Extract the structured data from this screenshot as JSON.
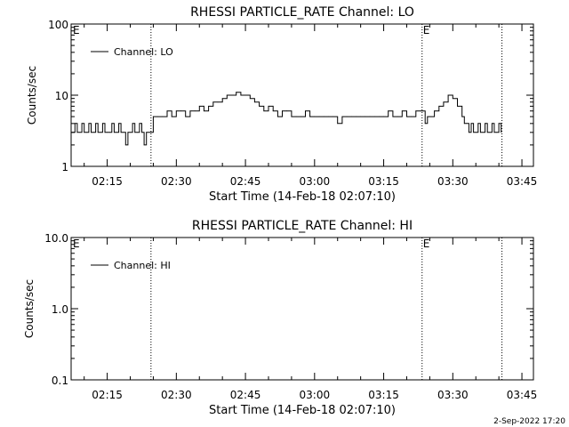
{
  "footer": {
    "date_stamp": "2-Sep-2022 17:20"
  },
  "chart_data": [
    {
      "type": "line",
      "title": "RHESSI PARTICLE_RATE Channel: LO",
      "xlabel": "Start Time (14-Feb-18 02:07:10)",
      "ylabel": "Counts/sec",
      "yscale": "log",
      "ylim": [
        1,
        100
      ],
      "yticks": [
        1,
        10,
        100
      ],
      "ytick_labels": [
        "1",
        "10",
        "100"
      ],
      "xlim": [
        "02:07:10",
        "03:47:30"
      ],
      "xticks": [
        "02:15",
        "02:30",
        "02:45",
        "03:00",
        "03:15",
        "03:30",
        "03:45"
      ],
      "grid": false,
      "legend": {
        "entries": [
          "Channel: LO"
        ],
        "position": "top-left"
      },
      "vlines": [
        {
          "x": "02:24:30",
          "label": ""
        },
        {
          "x": "03:23:20",
          "label": "E"
        },
        {
          "x": "03:40:40",
          "label": ""
        }
      ],
      "corner_label": "E",
      "series": [
        {
          "name": "Channel: LO",
          "x": [
            "02:07:10",
            "02:08:00",
            "02:08:30",
            "02:09:00",
            "02:09:30",
            "02:10:00",
            "02:10:30",
            "02:11:00",
            "02:11:30",
            "02:12:00",
            "02:12:30",
            "02:13:00",
            "02:13:30",
            "02:14:00",
            "02:14:30",
            "02:15:00",
            "02:15:30",
            "02:16:00",
            "02:16:30",
            "02:17:00",
            "02:17:30",
            "02:18:00",
            "02:18:30",
            "02:19:00",
            "02:19:30",
            "02:20:00",
            "02:20:30",
            "02:21:00",
            "02:21:30",
            "02:22:00",
            "02:22:30",
            "02:23:00",
            "02:23:30",
            "02:24:00",
            "02:24:30",
            "02:25:00",
            "02:26:00",
            "02:27:00",
            "02:28:00",
            "02:29:00",
            "02:30:00",
            "02:31:00",
            "02:32:00",
            "02:33:00",
            "02:34:00",
            "02:35:00",
            "02:36:00",
            "02:37:00",
            "02:38:00",
            "02:39:00",
            "02:40:00",
            "02:41:00",
            "02:42:00",
            "02:43:00",
            "02:44:00",
            "02:45:00",
            "02:46:00",
            "02:47:00",
            "02:48:00",
            "02:49:00",
            "02:50:00",
            "02:51:00",
            "02:52:00",
            "02:53:00",
            "02:54:00",
            "02:55:00",
            "02:56:00",
            "02:57:00",
            "02:58:00",
            "02:59:00",
            "03:00:00",
            "03:01:00",
            "03:02:00",
            "03:03:00",
            "03:04:00",
            "03:05:00",
            "03:06:00",
            "03:07:00",
            "03:08:00",
            "03:09:00",
            "03:10:00",
            "03:11:00",
            "03:12:00",
            "03:13:00",
            "03:14:00",
            "03:15:00",
            "03:16:00",
            "03:17:00",
            "03:18:00",
            "03:19:00",
            "03:20:00",
            "03:21:00",
            "03:22:00",
            "03:23:00",
            "03:23:30",
            "03:24:00",
            "03:24:30",
            "03:25:00",
            "03:26:00",
            "03:27:00",
            "03:28:00",
            "03:29:00",
            "03:30:00",
            "03:31:00",
            "03:32:00",
            "03:32:30",
            "03:33:00",
            "03:33:30",
            "03:34:00",
            "03:34:30",
            "03:35:00",
            "03:35:30",
            "03:36:00",
            "03:36:30",
            "03:37:00",
            "03:37:30",
            "03:38:00",
            "03:38:30",
            "03:39:00",
            "03:39:30",
            "03:40:00",
            "03:40:30"
          ],
          "values": [
            3,
            4,
            3,
            3,
            4,
            3,
            3,
            4,
            3,
            3,
            4,
            3,
            3,
            4,
            3,
            3,
            3,
            4,
            3,
            3,
            4,
            3,
            3,
            2,
            3,
            3,
            4,
            3,
            3,
            4,
            3,
            2,
            3,
            3,
            3,
            5,
            5,
            5,
            6,
            5,
            6,
            6,
            5,
            6,
            6,
            7,
            6,
            7,
            8,
            8,
            9,
            10,
            10,
            11,
            10,
            10,
            9,
            8,
            7,
            6,
            7,
            6,
            5,
            6,
            6,
            5,
            5,
            5,
            6,
            5,
            5,
            5,
            5,
            5,
            5,
            4,
            5,
            5,
            5,
            5,
            5,
            5,
            5,
            5,
            5,
            5,
            6,
            5,
            5,
            6,
            5,
            5,
            6,
            6,
            6,
            4,
            5,
            5,
            6,
            7,
            8,
            10,
            9,
            7,
            5,
            4,
            4,
            3,
            4,
            3,
            3,
            4,
            3,
            3,
            4,
            3,
            3,
            4,
            3,
            3,
            4,
            3
          ]
        }
      ]
    },
    {
      "type": "line",
      "title": "RHESSI PARTICLE_RATE Channel: HI",
      "xlabel": "Start Time (14-Feb-18 02:07:10)",
      "ylabel": "Counts/sec",
      "yscale": "log",
      "ylim": [
        0.1,
        10
      ],
      "yticks": [
        0.1,
        1,
        10
      ],
      "ytick_labels": [
        "0.1",
        "1.0",
        "10.0"
      ],
      "xlim": [
        "02:07:10",
        "03:47:30"
      ],
      "xticks": [
        "02:15",
        "02:30",
        "02:45",
        "03:00",
        "03:15",
        "03:30",
        "03:45"
      ],
      "grid": false,
      "legend": {
        "entries": [
          "Channel: HI"
        ],
        "position": "top-left"
      },
      "vlines": [
        {
          "x": "02:24:30",
          "label": ""
        },
        {
          "x": "03:23:20",
          "label": "E"
        },
        {
          "x": "03:40:40",
          "label": ""
        }
      ],
      "corner_label": "E",
      "series": [
        {
          "name": "Channel: HI",
          "x": [],
          "values": []
        }
      ]
    }
  ]
}
